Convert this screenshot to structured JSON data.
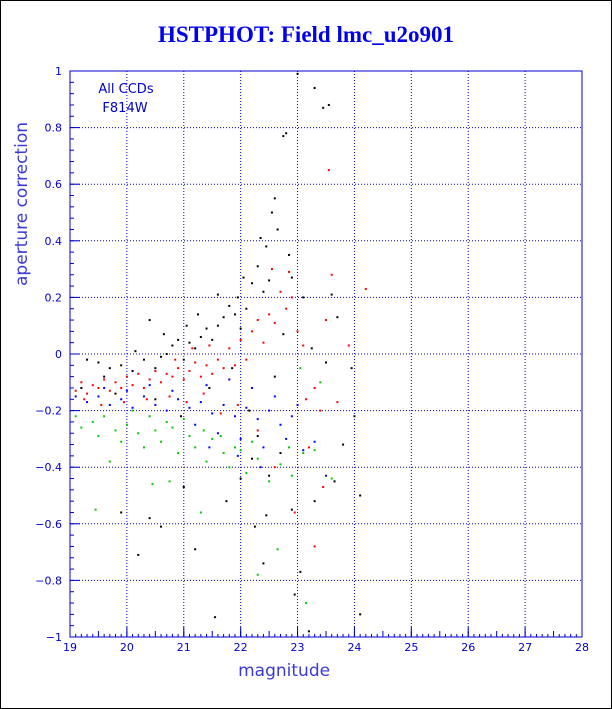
{
  "chart_data": {
    "type": "scatter",
    "title": "HSTPHOT: Field lmc_u2o901",
    "xlabel": "magnitude",
    "ylabel": "aperture correction",
    "xlim": [
      19,
      28
    ],
    "ylim": [
      -1,
      1
    ],
    "x_ticks": [
      "19",
      "20",
      "21",
      "22",
      "23",
      "24",
      "25",
      "26",
      "27",
      "28"
    ],
    "y_ticks": [
      "1",
      "0.8",
      "0.6",
      "0.4",
      "0.2",
      "0",
      "−0.2",
      "−0.4",
      "−0.6",
      "−0.8",
      "−1"
    ],
    "grid": true,
    "annotations": [
      "All CCDs",
      "F814W"
    ],
    "colors": {
      "axis": "#0000cc",
      "grid": "#0000cc",
      "title": "#0000ee"
    },
    "series": [
      {
        "color": "#000000",
        "points": [
          [
            19.2,
            -0.12
          ],
          [
            19.3,
            -0.02
          ],
          [
            19.5,
            -0.03
          ],
          [
            19.7,
            -0.05
          ],
          [
            19.9,
            -0.04
          ],
          [
            20.1,
            -0.06
          ],
          [
            20.3,
            -0.02
          ],
          [
            20.4,
            0.12
          ],
          [
            20.5,
            -0.05
          ],
          [
            20.6,
            -0.01
          ],
          [
            20.7,
            0.0
          ],
          [
            20.8,
            0.03
          ],
          [
            20.9,
            0.05
          ],
          [
            21.0,
            -0.02
          ],
          [
            21.1,
            0.04
          ],
          [
            21.2,
            0.02
          ],
          [
            21.3,
            0.06
          ],
          [
            21.4,
            0.09
          ],
          [
            21.5,
            0.05
          ],
          [
            21.6,
            0.1
          ],
          [
            21.7,
            0.13
          ],
          [
            21.8,
            0.17
          ],
          [
            21.9,
            0.14
          ],
          [
            21.95,
            0.2
          ],
          [
            22.0,
            0.09
          ],
          [
            22.1,
            0.16
          ],
          [
            22.2,
            0.25
          ],
          [
            22.3,
            0.31
          ],
          [
            22.35,
            0.41
          ],
          [
            22.45,
            0.38
          ],
          [
            22.5,
            0.26
          ],
          [
            22.55,
            0.5
          ],
          [
            22.6,
            0.55
          ],
          [
            22.75,
            0.77
          ],
          [
            22.8,
            0.78
          ],
          [
            22.85,
            0.35
          ],
          [
            22.9,
            0.27
          ],
          [
            23.0,
            0.99
          ],
          [
            23.3,
            0.94
          ],
          [
            23.45,
            0.87
          ],
          [
            23.55,
            0.88
          ],
          [
            23.1,
            0.2
          ],
          [
            23.25,
            0.02
          ],
          [
            23.6,
            0.21
          ],
          [
            23.5,
            -0.03
          ],
          [
            23.7,
            0.13
          ],
          [
            23.8,
            -0.32
          ],
          [
            24.0,
            -0.22
          ],
          [
            24.1,
            -0.5
          ],
          [
            23.95,
            -0.05
          ],
          [
            22.05,
            0.27
          ],
          [
            22.4,
            0.22
          ],
          [
            22.65,
            0.44
          ],
          [
            22.9,
            -0.55
          ],
          [
            22.95,
            -0.85
          ],
          [
            23.05,
            -0.77
          ],
          [
            23.2,
            -0.98
          ],
          [
            21.55,
            -0.93
          ],
          [
            21.2,
            -0.69
          ],
          [
            20.2,
            -0.71
          ],
          [
            21.0,
            -0.47
          ],
          [
            20.6,
            -0.61
          ],
          [
            19.9,
            -0.56
          ],
          [
            20.4,
            -0.58
          ],
          [
            22.0,
            -0.44
          ],
          [
            22.2,
            -0.37
          ],
          [
            22.45,
            -0.57
          ],
          [
            22.7,
            -0.35
          ],
          [
            21.75,
            -0.52
          ],
          [
            24.1,
            -0.92
          ],
          [
            22.5,
            -0.43
          ],
          [
            22.15,
            -0.2
          ],
          [
            21.85,
            -0.05
          ],
          [
            21.45,
            -0.12
          ],
          [
            20.95,
            -0.22
          ],
          [
            20.5,
            -0.16
          ],
          [
            19.8,
            -0.14
          ],
          [
            22.6,
            -0.08
          ],
          [
            22.3,
            -0.29
          ],
          [
            22.75,
            0.07
          ],
          [
            21.05,
            0.1
          ],
          [
            21.25,
            0.14
          ],
          [
            21.6,
            0.21
          ],
          [
            20.65,
            0.07
          ],
          [
            20.15,
            0.01
          ],
          [
            19.6,
            -0.08
          ],
          [
            22.25,
            -0.61
          ],
          [
            22.4,
            -0.74
          ],
          [
            23.3,
            -0.52
          ],
          [
            23.65,
            -0.45
          ]
        ]
      },
      {
        "color": "#ff0000",
        "points": [
          [
            19.1,
            -0.13
          ],
          [
            19.2,
            -0.1
          ],
          [
            19.3,
            -0.14
          ],
          [
            19.4,
            -0.11
          ],
          [
            19.5,
            -0.12
          ],
          [
            19.6,
            -0.09
          ],
          [
            19.7,
            -0.13
          ],
          [
            19.8,
            -0.1
          ],
          [
            19.9,
            -0.12
          ],
          [
            20.0,
            -0.08
          ],
          [
            20.1,
            -0.11
          ],
          [
            20.2,
            -0.07
          ],
          [
            20.3,
            -0.12
          ],
          [
            20.4,
            -0.09
          ],
          [
            20.5,
            -0.06
          ],
          [
            20.6,
            -0.1
          ],
          [
            20.7,
            -0.07
          ],
          [
            20.8,
            -0.08
          ],
          [
            20.9,
            -0.05
          ],
          [
            21.0,
            -0.09
          ],
          [
            21.1,
            -0.06
          ],
          [
            21.2,
            -0.03
          ],
          [
            21.3,
            -0.08
          ],
          [
            21.4,
            -0.04
          ],
          [
            21.5,
            -0.07
          ],
          [
            21.6,
            -0.02
          ],
          [
            21.7,
            -0.05
          ],
          [
            21.8,
            0.02
          ],
          [
            21.9,
            -0.04
          ],
          [
            22.0,
            0.05
          ],
          [
            22.1,
            -0.02
          ],
          [
            22.2,
            0.08
          ],
          [
            22.3,
            0.12
          ],
          [
            22.4,
            0.04
          ],
          [
            22.5,
            0.14
          ],
          [
            22.6,
            0.11
          ],
          [
            22.7,
            0.22
          ],
          [
            22.8,
            0.16
          ],
          [
            22.9,
            0.2
          ],
          [
            23.0,
            0.08
          ],
          [
            23.1,
            0.03
          ],
          [
            23.3,
            -0.12
          ],
          [
            23.5,
            0.12
          ],
          [
            23.55,
            0.65
          ],
          [
            23.7,
            -0.17
          ],
          [
            23.9,
            0.03
          ],
          [
            24.2,
            0.23
          ],
          [
            23.6,
            0.28
          ],
          [
            23.3,
            -0.68
          ],
          [
            23.45,
            -0.47
          ],
          [
            23.2,
            -0.33
          ],
          [
            22.95,
            -0.56
          ],
          [
            22.6,
            -0.4
          ],
          [
            22.3,
            -0.27
          ],
          [
            21.95,
            -0.18
          ],
          [
            21.65,
            -0.21
          ],
          [
            21.35,
            -0.14
          ],
          [
            21.05,
            -0.17
          ],
          [
            20.75,
            -0.15
          ],
          [
            20.35,
            -0.16
          ],
          [
            19.95,
            -0.17
          ],
          [
            19.55,
            -0.18
          ],
          [
            19.25,
            -0.16
          ],
          [
            22.85,
            0.29
          ],
          [
            22.55,
            0.3
          ],
          [
            23.15,
            -0.16
          ],
          [
            23.4,
            -0.2
          ],
          [
            21.45,
            0.03
          ],
          [
            21.15,
            0.02
          ],
          [
            20.85,
            -0.02
          ]
        ]
      },
      {
        "color": "#0000ff",
        "points": [
          [
            19.1,
            -0.15
          ],
          [
            19.3,
            -0.17
          ],
          [
            19.5,
            -0.15
          ],
          [
            19.7,
            -0.18
          ],
          [
            19.9,
            -0.16
          ],
          [
            20.1,
            -0.19
          ],
          [
            20.3,
            -0.15
          ],
          [
            20.5,
            -0.18
          ],
          [
            20.7,
            -0.2
          ],
          [
            20.9,
            -0.16
          ],
          [
            21.1,
            -0.19
          ],
          [
            21.3,
            -0.17
          ],
          [
            21.5,
            -0.21
          ],
          [
            21.7,
            -0.18
          ],
          [
            21.9,
            -0.22
          ],
          [
            22.1,
            -0.19
          ],
          [
            22.3,
            -0.23
          ],
          [
            22.5,
            -0.2
          ],
          [
            22.7,
            -0.25
          ],
          [
            22.9,
            -0.22
          ],
          [
            21.2,
            -0.25
          ],
          [
            21.6,
            -0.28
          ],
          [
            22.0,
            -0.3
          ],
          [
            22.4,
            -0.33
          ],
          [
            22.8,
            -0.3
          ],
          [
            23.1,
            -0.34
          ],
          [
            23.3,
            -0.31
          ],
          [
            23.5,
            -0.43
          ],
          [
            22.2,
            -0.12
          ],
          [
            21.8,
            -0.09
          ],
          [
            20.4,
            -0.11
          ],
          [
            20.0,
            -0.13
          ],
          [
            19.6,
            -0.12
          ],
          [
            20.8,
            -0.13
          ],
          [
            21.4,
            -0.11
          ],
          [
            22.6,
            -0.15
          ],
          [
            23.0,
            -0.18
          ],
          [
            22.35,
            -0.4
          ],
          [
            21.95,
            -0.36
          ],
          [
            21.45,
            -0.33
          ]
        ]
      },
      {
        "color": "#00cc00",
        "points": [
          [
            19.1,
            -0.22
          ],
          [
            19.2,
            -0.26
          ],
          [
            19.4,
            -0.24
          ],
          [
            19.5,
            -0.29
          ],
          [
            19.6,
            -0.22
          ],
          [
            19.8,
            -0.27
          ],
          [
            19.9,
            -0.31
          ],
          [
            20.0,
            -0.25
          ],
          [
            20.2,
            -0.28
          ],
          [
            20.3,
            -0.33
          ],
          [
            20.5,
            -0.27
          ],
          [
            20.6,
            -0.31
          ],
          [
            20.8,
            -0.26
          ],
          [
            20.9,
            -0.35
          ],
          [
            21.1,
            -0.29
          ],
          [
            21.2,
            -0.33
          ],
          [
            21.4,
            -0.38
          ],
          [
            21.5,
            -0.3
          ],
          [
            21.7,
            -0.35
          ],
          [
            21.8,
            -0.4
          ],
          [
            22.0,
            -0.34
          ],
          [
            22.1,
            -0.42
          ],
          [
            22.3,
            -0.37
          ],
          [
            22.5,
            -0.45
          ],
          [
            22.7,
            -0.39
          ],
          [
            22.9,
            -0.43
          ],
          [
            23.1,
            -0.35
          ],
          [
            23.3,
            -0.34
          ],
          [
            23.4,
            -0.1
          ],
          [
            23.6,
            -0.44
          ],
          [
            19.45,
            -0.55
          ],
          [
            19.7,
            -0.38
          ],
          [
            20.45,
            -0.46
          ],
          [
            20.75,
            -0.45
          ],
          [
            21.3,
            -0.56
          ],
          [
            22.65,
            -0.69
          ],
          [
            23.15,
            -0.88
          ],
          [
            22.3,
            -0.78
          ],
          [
            21.9,
            -0.33
          ],
          [
            23.05,
            -0.05
          ],
          [
            20.1,
            -0.2
          ],
          [
            20.4,
            -0.22
          ],
          [
            20.7,
            -0.24
          ],
          [
            21.0,
            -0.23
          ],
          [
            21.35,
            -0.27
          ],
          [
            21.65,
            -0.29
          ],
          [
            22.2,
            -0.31
          ],
          [
            22.85,
            -0.33
          ]
        ]
      }
    ]
  }
}
